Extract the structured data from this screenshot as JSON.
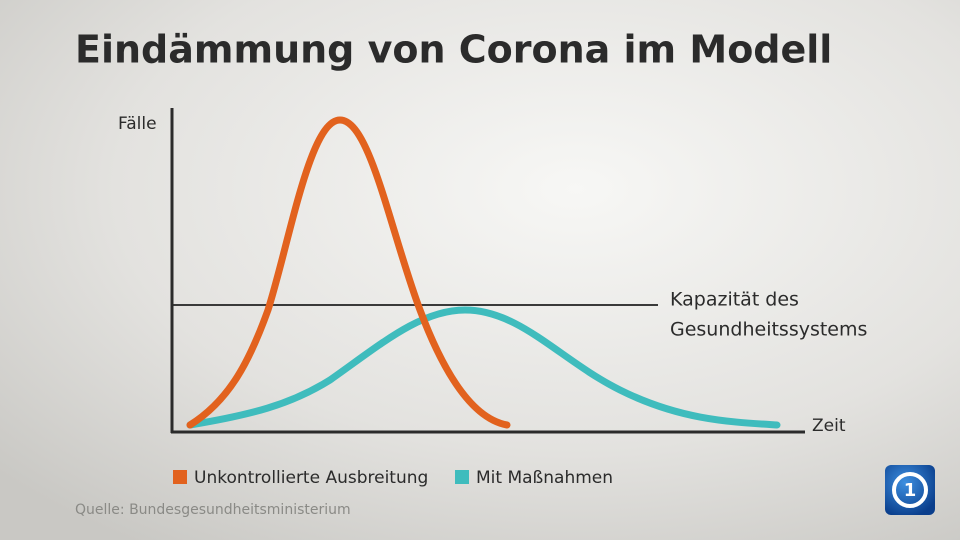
{
  "chart_data": {
    "type": "line",
    "title": "Eindämmung von Corona im Modell",
    "y_label": "Fälle",
    "x_label": "Zeit",
    "annotation": [
      "Kapazität des",
      "Gesundheitssystems"
    ],
    "series": [
      {
        "name": "Unkontrollierte Ausbreitung",
        "color": "#e2621e"
      },
      {
        "name": "Mit Maßnahmen",
        "color": "#3fbcbd"
      }
    ],
    "source": "Quelle: Bundesgesundheitsministerium"
  }
}
